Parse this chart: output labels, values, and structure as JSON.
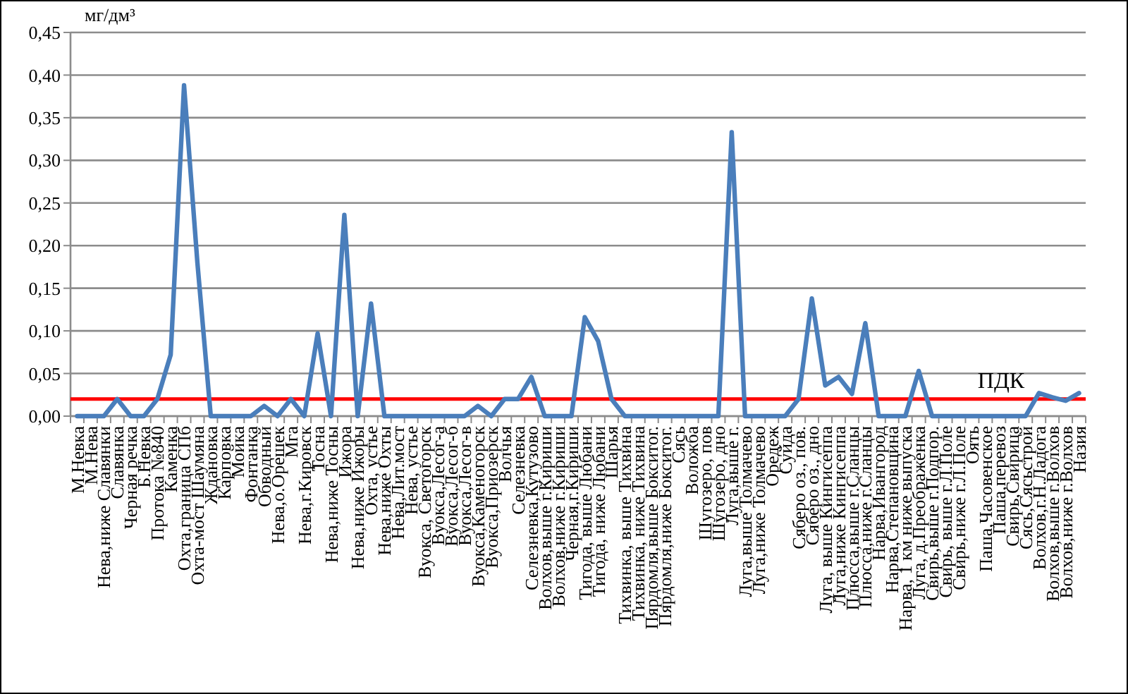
{
  "chart_data": {
    "type": "line",
    "ylabel": "мг/дм³",
    "categories": [
      "М.Невка",
      "М.Нева",
      "Нева,ниже Славянки",
      "Славянка",
      "Черная речка",
      "Б.Невка",
      "Протока №840",
      "Каменка",
      "Охта,граница СПб",
      "Охта-мост Шаумяна",
      "Ждановка",
      "Карповка",
      "Мойка",
      "Фонтанка",
      "Обводный",
      "Нева,о.Орешек",
      "Мга",
      "Нева,г.Кировск",
      "Тосна",
      "Нева,ниже Тосны",
      "Ижора",
      "Нева,ниже Ижоры",
      "Охта, устье",
      "Нева,ниже Охты",
      "Нева,Лит.мост",
      "Нева, устье",
      "Вуокса, Светогорск",
      "Вуокса,Лесог-а",
      "Вуокса,Лесог-б",
      "Вуокса,Лесог-в",
      "Вуокса,Каменогорск",
      "Вуокса,Приозерск",
      "Волчья",
      "Селезневка",
      "Селезневка,Кутузово",
      "Волхов,выше г.Кириши",
      "Волхов,ниже г.Кириши",
      "Черная,г.Кириши",
      "Тигода, выше Любани",
      "Тигода, ниже Любани",
      "Шарья",
      "Тихвинка, выше Тихвина",
      "Тихвинка, ниже Тихвина",
      "Пярдомля,выше Бокситог.",
      "Пярдомля,ниже Бокситог.",
      "Сясь",
      "Воложба",
      "Шугозеро, пов",
      "Шугозеро, дно",
      "Луга,выше г.",
      "Луга,выше Толмачево",
      "Луга,ниже Толмачево",
      "Оредеж",
      "Суйда",
      "Сяберо оз., пов.",
      "Сяберо оз., дно",
      "Луга, выше Кингисеппа",
      "Луга,ниже Кингисеппа",
      "Плюсса,выше г.Сланцы",
      "Плюсса,ниже г.Сланцы",
      "Нарва,Ивангород",
      "Нарва,Степановщина",
      "Нарва, 1 км ниже выпуска",
      "Луга, д.Преображенка",
      "Свирь,выше г.Подпор.",
      "Свирь, выше г.Л.Поле",
      "Свирь,ниже г.Л.Поле",
      "Оять",
      "Паша,Часовенское",
      "Паша,перевоз",
      "Свирь,Свирица",
      "Сясь,Сясьстрой",
      "Волхов,г.Н.Ладога",
      "Волхов,выше г.Волхов",
      "Волхов,ниже г.Волхов",
      "Назия"
    ],
    "series": [
      {
        "color": "#4a7ebb",
        "values": [
          0,
          0,
          0,
          0.02,
          0,
          0,
          0.02,
          0.072,
          0.388,
          0.18,
          0,
          0,
          0,
          0,
          0.012,
          0,
          0.02,
          0,
          0.097,
          0,
          0.236,
          0,
          0.132,
          0,
          0,
          0,
          0,
          0,
          0,
          0,
          0.012,
          0,
          0.02,
          0.02,
          0.046,
          0,
          0,
          0,
          0.116,
          0.088,
          0.02,
          0,
          0,
          0,
          0,
          0,
          0,
          0,
          0,
          0.333,
          0,
          0,
          0,
          0,
          0.02,
          0.138,
          0.036,
          0.046,
          0.026,
          0.109,
          0,
          0,
          0,
          0.053,
          0,
          0,
          0,
          0,
          0,
          0,
          0,
          0,
          0.027,
          0.022,
          0.018,
          0.027
        ]
      }
    ],
    "ylim": [
      0,
      0.45
    ],
    "yticks": [
      {
        "value": 0,
        "label": "0,00"
      },
      {
        "value": 0.05,
        "label": "0,05"
      },
      {
        "value": 0.1,
        "label": "0,10"
      },
      {
        "value": 0.15,
        "label": "0,15"
      },
      {
        "value": 0.2,
        "label": "0,20"
      },
      {
        "value": 0.25,
        "label": "0,25"
      },
      {
        "value": 0.3,
        "label": "0,30"
      },
      {
        "value": 0.35,
        "label": "0,35"
      },
      {
        "value": 0.4,
        "label": "0,40"
      },
      {
        "value": 0.45,
        "label": "0,45"
      }
    ],
    "grid": "y",
    "marker": "none",
    "line_style": "solid",
    "ref_lines": [
      {
        "axis": "y",
        "value": 0.02,
        "label": "ПДК",
        "color": "#ff0000"
      }
    ]
  }
}
